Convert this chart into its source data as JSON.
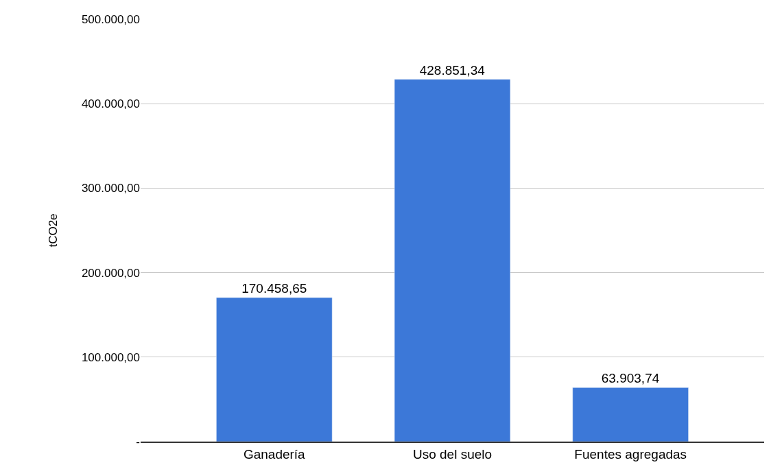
{
  "chart_data": {
    "type": "bar",
    "ylabel": "tCO2e",
    "categories": [
      "Ganadería",
      "Uso del suelo",
      "Fuentes agregadas"
    ],
    "values": [
      170458.65,
      428851.34,
      63903.74
    ],
    "value_labels": [
      "170.458,65",
      "428.851,34",
      "63.903,74"
    ],
    "color": "#3c78d8",
    "ylim": [
      0,
      500000
    ],
    "yticks": [
      {
        "value": 0,
        "label": "-"
      },
      {
        "value": 100000,
        "label": "100.000,00"
      },
      {
        "value": 200000,
        "label": "200.000,00"
      },
      {
        "value": 300000,
        "label": "300.000,00"
      },
      {
        "value": 400000,
        "label": "400.000,00"
      },
      {
        "value": 500000,
        "label": "500.000,00"
      }
    ],
    "grid": "y",
    "legend": false
  }
}
